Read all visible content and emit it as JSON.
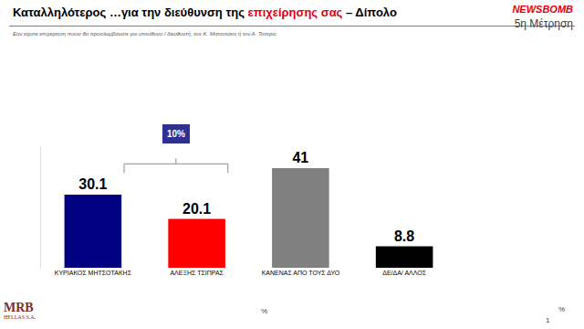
{
  "chart_data": {
    "type": "bar",
    "title": "Καταλληλότερος …για την διεύθυνση της επιχείρησης σας – Δίπολο",
    "title_highlight": "επιχείρησης σας",
    "subtitle": "Εάν είχατε επιχείρηση ποιον θα προσλαμβάνατε για υπεύθυνο / διευθυντή, τον Κ. Μητσοτάκη ή τον Α. Τσίπρα;",
    "categories": [
      "ΚΥΡΙΑΚΟΣ ΜΗΤΣΟΤΑΚΗΣ",
      "ΑΛΕΞΗΣ ΤΣΙΠΡΑΣ",
      "ΚΑΝΕΝΑΣ ΑΠΟ ΤΟΥΣ ΔΥΟ",
      "ΔΕ/ΔΑ/ ΑΛΛΟΣ"
    ],
    "values": [
      30.1,
      20.1,
      41,
      8.8
    ],
    "colors": [
      "#000080",
      "#ff0000",
      "#808080",
      "#000000"
    ],
    "ylim": [
      0,
      50
    ],
    "tick_labels": "x",
    "grid": false,
    "data_labels": true,
    "annotations": [
      {
        "text": "10%",
        "from": "ΚΥΡΙΑΚΟΣ ΜΗΤΣΟΤΑΚΗΣ",
        "to": "ΑΛΕΞΗΣ ΤΣΙΠΡΑΣ"
      }
    ]
  },
  "header": {
    "brand": "NEWSBOMB",
    "wave": "5η Μέτρηση"
  },
  "footer": {
    "logo": [
      "MRB",
      "HELLAS S.A."
    ],
    "percent_marks": [
      "%",
      "%"
    ],
    "page": 1
  }
}
